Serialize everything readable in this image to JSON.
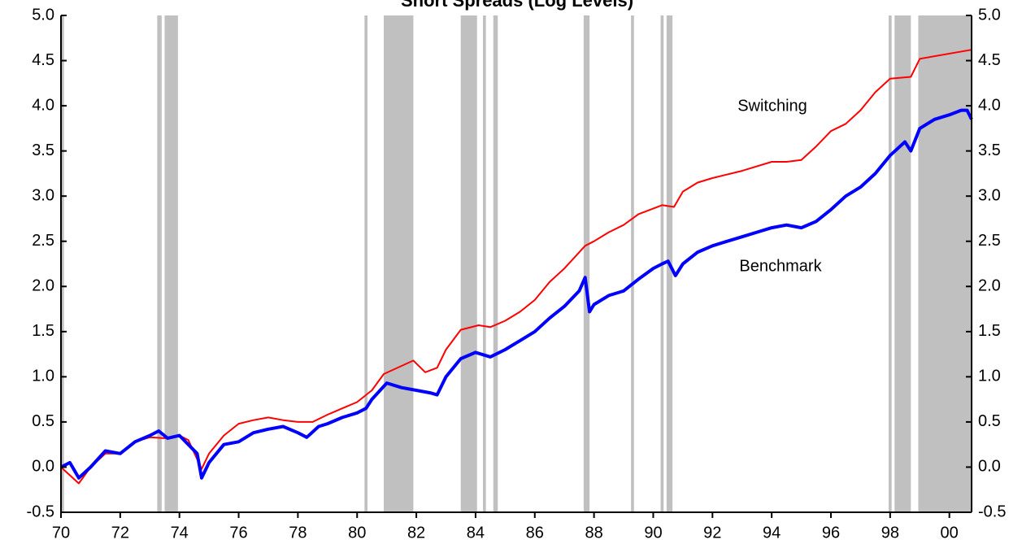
{
  "chart_data": {
    "type": "line",
    "title": "Short Spreads (Log Levels)",
    "xlim": [
      1970,
      2000.75
    ],
    "xticks": [
      {
        "value": 1970,
        "label": "70"
      },
      {
        "value": 1972,
        "label": "72"
      },
      {
        "value": 1974,
        "label": "74"
      },
      {
        "value": 1976,
        "label": "76"
      },
      {
        "value": 1978,
        "label": "78"
      },
      {
        "value": 1980,
        "label": "80"
      },
      {
        "value": 1982,
        "label": "82"
      },
      {
        "value": 1984,
        "label": "84"
      },
      {
        "value": 1986,
        "label": "86"
      },
      {
        "value": 1988,
        "label": "88"
      },
      {
        "value": 1990,
        "label": "90"
      },
      {
        "value": 1992,
        "label": "92"
      },
      {
        "value": 1994,
        "label": "94"
      },
      {
        "value": 1996,
        "label": "96"
      },
      {
        "value": 1998,
        "label": "98"
      },
      {
        "value": 2000,
        "label": "00"
      }
    ],
    "ylim": [
      -0.5,
      5
    ],
    "yticks": [
      -0.5,
      {
        "value": 0,
        "label": "0.0"
      },
      0.5,
      {
        "value": 1,
        "label": "1.0"
      },
      1.5,
      {
        "value": 2,
        "label": "2.0"
      },
      2.5,
      {
        "value": 3,
        "label": "3.0"
      },
      3.5,
      {
        "value": 4,
        "label": "4.0"
      },
      4.5,
      {
        "value": 5,
        "label": "5.0"
      }
    ],
    "y2lim": [
      -0.5,
      5
    ],
    "y2ticks": [
      -0.5,
      {
        "value": 0,
        "label": "0.0"
      },
      0.5,
      {
        "value": 1,
        "label": "1.0"
      },
      1.5,
      {
        "value": 2,
        "label": "2.0"
      },
      2.5,
      {
        "value": 3,
        "label": "3.0"
      },
      3.5,
      {
        "value": 4,
        "label": "4.0"
      },
      4.5,
      {
        "value": 5,
        "label": "5.0"
      }
    ],
    "shade_color": "#c0c0c0",
    "shaded": [
      [
        1970.0,
        1970.1
      ],
      [
        1973.25,
        1973.4
      ],
      [
        1973.5,
        1973.95
      ],
      [
        1980.25,
        1980.35
      ],
      [
        1980.9,
        1981.9
      ],
      [
        1983.5,
        1984.05
      ],
      [
        1984.25,
        1984.35
      ],
      [
        1984.6,
        1984.75
      ],
      [
        1987.65,
        1987.85
      ],
      [
        1989.25,
        1989.35
      ],
      [
        1990.25,
        1990.35
      ],
      [
        1990.45,
        1990.65
      ],
      [
        1997.95,
        1998.05
      ],
      [
        1998.15,
        1998.7
      ],
      [
        1998.95,
        2000.75
      ]
    ],
    "series": [
      {
        "name": "Switching",
        "color": "#ff0000",
        "width": 2,
        "x": [
          1970.0,
          1970.6,
          1971.0,
          1971.5,
          1972.0,
          1972.5,
          1973.0,
          1973.5,
          1974.0,
          1974.3,
          1974.75,
          1975.0,
          1975.5,
          1976.0,
          1976.5,
          1977.0,
          1977.5,
          1978.0,
          1978.5,
          1979.0,
          1979.5,
          1980.0,
          1980.5,
          1980.9,
          1981.9,
          1982.3,
          1982.7,
          1983.0,
          1983.5,
          1984.1,
          1984.5,
          1985.0,
          1985.5,
          1986.0,
          1986.5,
          1987.0,
          1987.7,
          1988.0,
          1988.5,
          1989.0,
          1989.5,
          1990.3,
          1990.7,
          1991.0,
          1991.5,
          1992.0,
          1993.0,
          1994.0,
          1994.5,
          1995.0,
          1995.5,
          1996.0,
          1996.5,
          1997.0,
          1997.5,
          1998.0,
          1998.7,
          1999.0,
          2000.75
        ],
        "values": [
          0.0,
          -0.18,
          0.0,
          0.15,
          0.15,
          0.28,
          0.33,
          0.32,
          0.35,
          0.3,
          -0.02,
          0.15,
          0.35,
          0.48,
          0.52,
          0.55,
          0.52,
          0.5,
          0.5,
          0.58,
          0.65,
          0.72,
          0.85,
          1.03,
          1.18,
          1.05,
          1.1,
          1.3,
          1.52,
          1.57,
          1.55,
          1.62,
          1.72,
          1.85,
          2.05,
          2.2,
          2.45,
          2.5,
          2.6,
          2.68,
          2.8,
          2.9,
          2.88,
          3.05,
          3.15,
          3.2,
          3.28,
          3.38,
          3.38,
          3.4,
          3.55,
          3.72,
          3.8,
          3.95,
          4.15,
          4.3,
          4.32,
          4.52,
          4.62
        ]
      },
      {
        "name": "Benchmark",
        "color": "#0000ff",
        "width": 4,
        "x": [
          1970.0,
          1970.3,
          1970.6,
          1971.0,
          1971.5,
          1972.0,
          1972.5,
          1973.0,
          1973.3,
          1973.6,
          1974.0,
          1974.3,
          1974.6,
          1974.75,
          1975.0,
          1975.5,
          1976.0,
          1976.5,
          1977.0,
          1977.5,
          1978.0,
          1978.3,
          1978.7,
          1979.0,
          1979.5,
          1980.0,
          1980.3,
          1980.5,
          1981.0,
          1981.5,
          1982.0,
          1982.5,
          1982.7,
          1983.0,
          1983.5,
          1984.0,
          1984.5,
          1985.0,
          1985.5,
          1986.0,
          1986.5,
          1987.0,
          1987.5,
          1987.7,
          1987.85,
          1988.0,
          1988.5,
          1989.0,
          1989.5,
          1990.0,
          1990.3,
          1990.5,
          1990.75,
          1991.0,
          1991.5,
          1992.0,
          1992.5,
          1993.0,
          1993.5,
          1994.0,
          1994.5,
          1995.0,
          1995.5,
          1996.0,
          1996.5,
          1997.0,
          1997.5,
          1998.0,
          1998.5,
          1998.7,
          1999.0,
          1999.5,
          2000.0,
          2000.4,
          2000.6,
          2000.75
        ],
        "values": [
          0.0,
          0.05,
          -0.12,
          0.0,
          0.18,
          0.15,
          0.28,
          0.35,
          0.4,
          0.32,
          0.35,
          0.25,
          0.15,
          -0.12,
          0.05,
          0.25,
          0.28,
          0.38,
          0.42,
          0.45,
          0.38,
          0.33,
          0.45,
          0.48,
          0.55,
          0.6,
          0.65,
          0.75,
          0.93,
          0.88,
          0.85,
          0.82,
          0.8,
          1.0,
          1.2,
          1.27,
          1.22,
          1.3,
          1.4,
          1.5,
          1.65,
          1.78,
          1.95,
          2.1,
          1.72,
          1.8,
          1.9,
          1.95,
          2.08,
          2.2,
          2.25,
          2.28,
          2.12,
          2.25,
          2.38,
          2.45,
          2.5,
          2.55,
          2.6,
          2.65,
          2.68,
          2.65,
          2.72,
          2.85,
          3.0,
          3.1,
          3.25,
          3.45,
          3.6,
          3.5,
          3.75,
          3.85,
          3.9,
          3.95,
          3.95,
          3.85
        ]
      }
    ],
    "annotations": [
      "Switching",
      "Benchmark"
    ]
  }
}
